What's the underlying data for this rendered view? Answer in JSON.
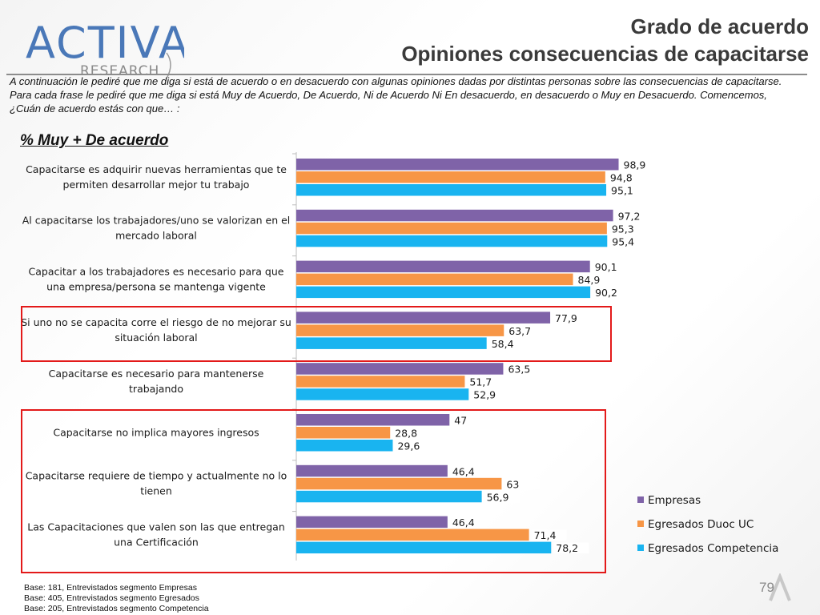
{
  "header": {
    "title_line1": "Grado de acuerdo",
    "title_line2": "Opiniones consecuencias de capacitarse",
    "logo_brand": "ACTIVA",
    "logo_sub": "RESEARCH"
  },
  "question": "A continuación le pediré que me diga si está de acuerdo o en desacuerdo con algunas opiniones dadas por distintas personas sobre las consecuencias de capacitarse. Para cada frase le pediré que me diga si está Muy de Acuerdo, De Acuerdo, Ni de Acuerdo Ni En desacuerdo, en desacuerdo o Muy en Desacuerdo. Comencemos, ¿Cuán de acuerdo estás con que… :",
  "subtitle": "% Muy + De acuerdo",
  "footer": {
    "lines": [
      "Base: 181, Entrevistados segmento Empresas",
      "Base: 405, Entrevistados segmento Egresados",
      "Base: 205, Entrevistados segmento Competencia"
    ],
    "page_number": "79"
  },
  "colors": {
    "empresas": "#7f63a8",
    "egresados_duoc": "#f79646",
    "egresados_competencia": "#19b4f0",
    "highlight": "#e31a1a"
  },
  "chart_data": {
    "type": "bar",
    "orientation": "horizontal",
    "categories": [
      [
        "Capacitarse es adquirir nuevas herramientas que te",
        "permiten desarrollar mejor tu trabajo"
      ],
      [
        "Al capacitarse los trabajadores/uno se valorizan en el",
        "mercado laboral"
      ],
      [
        "Capacitar a los trabajadores es necesario para que",
        "una empresa/persona se mantenga vigente"
      ],
      [
        "Si uno no se capacita corre el riesgo de no mejorar su",
        "situación laboral"
      ],
      [
        "Capacitarse es necesario para mantenerse",
        "trabajando"
      ],
      [
        "Capacitarse no implica mayores ingresos"
      ],
      [
        "Capacitarse requiere de tiempo y actualmente no lo",
        "tienen"
      ],
      [
        "Las Capacitaciones que valen son las que entregan",
        "una Certificación"
      ]
    ],
    "series": [
      {
        "name": "Empresas",
        "values": [
          98.9,
          97.2,
          90.1,
          77.9,
          63.5,
          47,
          46.4,
          46.4
        ],
        "labels": [
          "98,9",
          "97,2",
          "90,1",
          "77,9",
          "63,5",
          "47",
          "46,4",
          "46,4"
        ]
      },
      {
        "name": "Egresados Duoc UC",
        "values": [
          94.8,
          95.3,
          84.9,
          63.7,
          51.7,
          28.8,
          63,
          71.4
        ],
        "labels": [
          "94,8",
          "95,3",
          "84,9",
          "63,7",
          "51,7",
          "28,8",
          "63",
          "71,4"
        ]
      },
      {
        "name": "Egresados Competencia",
        "values": [
          95.1,
          95.4,
          90.2,
          58.4,
          52.9,
          29.6,
          56.9,
          78.2
        ],
        "labels": [
          "95,1",
          "95,4",
          "90,2",
          "58,4",
          "52,9",
          "29,6",
          "56,9",
          "78,2"
        ]
      }
    ],
    "xlim": [
      0,
      100
    ],
    "legend_position": "bottom-right",
    "highlighted_categories": [
      3,
      5,
      6,
      7
    ]
  }
}
